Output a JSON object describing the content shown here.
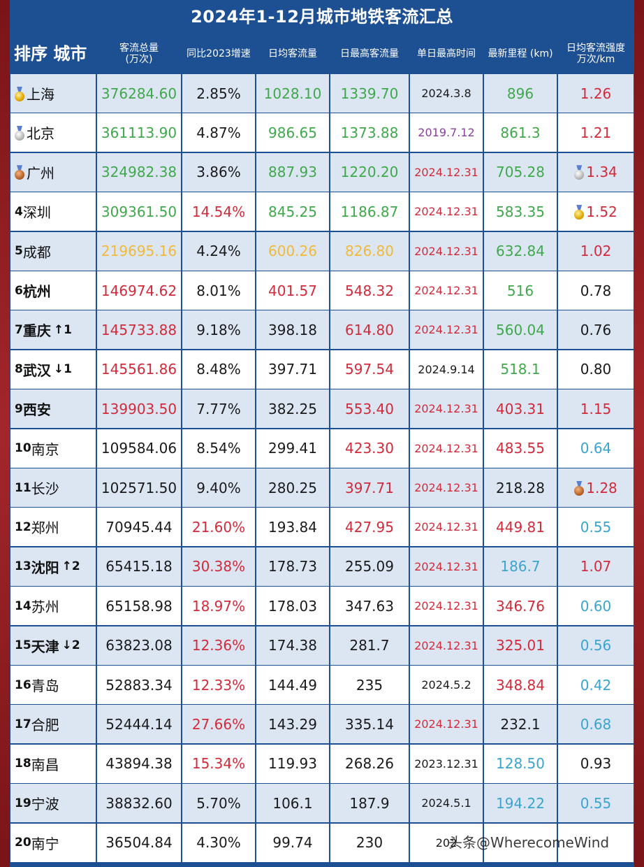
{
  "title": "2024年1-12月城市地铁客流汇总",
  "watermark": "头条@WherecomeWind",
  "header": {
    "rank_city": "排序 城市",
    "total": "客流总量\n(万次)",
    "yoy": "同比2023增速",
    "daily_avg": "日均客流量",
    "daily_max": "日最高客流量",
    "max_date": "单日最高时间",
    "mileage": "最新里程 (km)",
    "intensity": "日均客流强度\n万次/km"
  },
  "colors": {
    "green": "#3fa84a",
    "yellow": "#f0b93a",
    "red": "#d22a3a",
    "black": "#1a1a1a",
    "purple": "#8a3fa0",
    "blue": "#3aa4d0",
    "header_bg": "#1d4f93",
    "row_alt": "#dce6f3"
  },
  "rows": [
    {
      "rank": "",
      "medal": "gold",
      "city": "上海",
      "bold": false,
      "arrow": "",
      "total": "376284.60",
      "total_c": "green",
      "yoy": "2.85%",
      "yoy_c": "black",
      "avg": "1028.10",
      "avg_c": "green",
      "max": "1339.70",
      "max_c": "green",
      "date": "2024.3.8",
      "date_c": "black",
      "km": "896",
      "km_c": "green",
      "int": "1.26",
      "int_c": "red",
      "int_medal": ""
    },
    {
      "rank": "",
      "medal": "silver",
      "city": "北京",
      "bold": false,
      "arrow": "",
      "total": "361113.90",
      "total_c": "green",
      "yoy": "4.87%",
      "yoy_c": "black",
      "avg": "986.65",
      "avg_c": "green",
      "max": "1373.88",
      "max_c": "green",
      "date": "2019.7.12",
      "date_c": "purple",
      "km": "861.3",
      "km_c": "green",
      "int": "1.21",
      "int_c": "red",
      "int_medal": ""
    },
    {
      "rank": "",
      "medal": "bronze",
      "city": "广州",
      "bold": false,
      "arrow": "",
      "total": "324982.38",
      "total_c": "green",
      "yoy": "3.86%",
      "yoy_c": "black",
      "avg": "887.93",
      "avg_c": "green",
      "max": "1220.20",
      "max_c": "green",
      "date": "2024.12.31",
      "date_c": "red",
      "km": "705.28",
      "km_c": "green",
      "int": "1.34",
      "int_c": "red",
      "int_medal": "silver"
    },
    {
      "rank": "4",
      "medal": "",
      "city": "深圳",
      "bold": false,
      "arrow": "",
      "total": "309361.50",
      "total_c": "green",
      "yoy": "14.54%",
      "yoy_c": "red",
      "avg": "845.25",
      "avg_c": "green",
      "max": "1186.87",
      "max_c": "green",
      "date": "2024.12.31",
      "date_c": "red",
      "km": "583.35",
      "km_c": "green",
      "int": "1.52",
      "int_c": "red",
      "int_medal": "gold"
    },
    {
      "rank": "5",
      "medal": "",
      "city": "成都",
      "bold": false,
      "arrow": "",
      "total": "219695.16",
      "total_c": "yellow",
      "yoy": "4.24%",
      "yoy_c": "black",
      "avg": "600.26",
      "avg_c": "yellow",
      "max": "826.80",
      "max_c": "yellow",
      "date": "2024.12.31",
      "date_c": "red",
      "km": "632.84",
      "km_c": "green",
      "int": "1.02",
      "int_c": "red",
      "int_medal": ""
    },
    {
      "rank": "6",
      "medal": "",
      "city": "杭州",
      "bold": true,
      "arrow": "",
      "total": "146974.62",
      "total_c": "red",
      "yoy": "8.01%",
      "yoy_c": "black",
      "avg": "401.57",
      "avg_c": "red",
      "max": "548.32",
      "max_c": "red",
      "date": "2024.12.31",
      "date_c": "red",
      "km": "516",
      "km_c": "green",
      "int": "0.78",
      "int_c": "black",
      "int_medal": ""
    },
    {
      "rank": "7",
      "medal": "",
      "city": "重庆",
      "bold": true,
      "arrow": "↑1",
      "total": "145733.88",
      "total_c": "red",
      "yoy": "9.18%",
      "yoy_c": "black",
      "avg": "398.18",
      "avg_c": "black",
      "max": "614.80",
      "max_c": "red",
      "date": "2024.12.31",
      "date_c": "red",
      "km": "560.04",
      "km_c": "green",
      "int": "0.76",
      "int_c": "black",
      "int_medal": ""
    },
    {
      "rank": "8",
      "medal": "",
      "city": "武汉",
      "bold": true,
      "arrow": "↓1",
      "total": "145561.86",
      "total_c": "red",
      "yoy": "8.48%",
      "yoy_c": "black",
      "avg": "397.71",
      "avg_c": "black",
      "max": "597.54",
      "max_c": "red",
      "date": "2024.9.14",
      "date_c": "black",
      "km": "518.1",
      "km_c": "green",
      "int": "0.80",
      "int_c": "black",
      "int_medal": ""
    },
    {
      "rank": "9",
      "medal": "",
      "city": "西安",
      "bold": true,
      "arrow": "",
      "total": "139903.50",
      "total_c": "red",
      "yoy": "7.77%",
      "yoy_c": "black",
      "avg": "382.25",
      "avg_c": "black",
      "max": "553.40",
      "max_c": "red",
      "date": "2024.12.31",
      "date_c": "red",
      "km": "403.31",
      "km_c": "red",
      "int": "1.15",
      "int_c": "red",
      "int_medal": ""
    },
    {
      "rank": "10",
      "medal": "",
      "city": "南京",
      "bold": false,
      "arrow": "",
      "total": "109584.06",
      "total_c": "black",
      "yoy": "8.54%",
      "yoy_c": "black",
      "avg": "299.41",
      "avg_c": "black",
      "max": "423.30",
      "max_c": "red",
      "date": "2024.12.31",
      "date_c": "red",
      "km": "483.55",
      "km_c": "red",
      "int": "0.64",
      "int_c": "blue",
      "int_medal": ""
    },
    {
      "rank": "11",
      "medal": "",
      "city": "长沙",
      "bold": false,
      "arrow": "",
      "total": "102571.50",
      "total_c": "black",
      "yoy": "9.40%",
      "yoy_c": "black",
      "avg": "280.25",
      "avg_c": "black",
      "max": "397.71",
      "max_c": "red",
      "date": "2024.12.31",
      "date_c": "red",
      "km": "218.28",
      "km_c": "black",
      "int": "1.28",
      "int_c": "red",
      "int_medal": "bronze"
    },
    {
      "rank": "12",
      "medal": "",
      "city": "郑州",
      "bold": false,
      "arrow": "",
      "total": "70945.44",
      "total_c": "black",
      "yoy": "21.60%",
      "yoy_c": "red",
      "avg": "193.84",
      "avg_c": "black",
      "max": "427.95",
      "max_c": "red",
      "date": "2024.12.31",
      "date_c": "red",
      "km": "449.81",
      "km_c": "red",
      "int": "0.55",
      "int_c": "blue",
      "int_medal": ""
    },
    {
      "rank": "13",
      "medal": "",
      "city": "沈阳",
      "bold": true,
      "arrow": "↑2",
      "total": "65415.18",
      "total_c": "black",
      "yoy": "30.38%",
      "yoy_c": "red",
      "avg": "178.73",
      "avg_c": "black",
      "max": "255.09",
      "max_c": "black",
      "date": "2024.12.31",
      "date_c": "red",
      "km": "186.7",
      "km_c": "blue",
      "int": "1.07",
      "int_c": "red",
      "int_medal": ""
    },
    {
      "rank": "14",
      "medal": "",
      "city": "苏州",
      "bold": false,
      "arrow": "",
      "total": "65158.98",
      "total_c": "black",
      "yoy": "18.97%",
      "yoy_c": "red",
      "avg": "178.03",
      "avg_c": "black",
      "max": "347.63",
      "max_c": "black",
      "date": "2024.12.31",
      "date_c": "red",
      "km": "346.76",
      "km_c": "red",
      "int": "0.60",
      "int_c": "blue",
      "int_medal": ""
    },
    {
      "rank": "15",
      "medal": "",
      "city": "天津",
      "bold": true,
      "arrow": "↓2",
      "total": "63823.08",
      "total_c": "black",
      "yoy": "12.36%",
      "yoy_c": "red",
      "avg": "174.38",
      "avg_c": "black",
      "max": "281.7",
      "max_c": "black",
      "date": "2024.12.31",
      "date_c": "red",
      "km": "325.01",
      "km_c": "red",
      "int": "0.56",
      "int_c": "blue",
      "int_medal": ""
    },
    {
      "rank": "16",
      "medal": "",
      "city": "青岛",
      "bold": false,
      "arrow": "",
      "total": "52883.34",
      "total_c": "black",
      "yoy": "12.33%",
      "yoy_c": "red",
      "avg": "144.49",
      "avg_c": "black",
      "max": "235",
      "max_c": "black",
      "date": "2024.5.2",
      "date_c": "black",
      "km": "348.84",
      "km_c": "red",
      "int": "0.42",
      "int_c": "blue",
      "int_medal": ""
    },
    {
      "rank": "17",
      "medal": "",
      "city": "合肥",
      "bold": false,
      "arrow": "",
      "total": "52444.14",
      "total_c": "black",
      "yoy": "27.66%",
      "yoy_c": "red",
      "avg": "143.29",
      "avg_c": "black",
      "max": "335.14",
      "max_c": "black",
      "date": "2024.12.31",
      "date_c": "red",
      "km": "232.1",
      "km_c": "black",
      "int": "0.68",
      "int_c": "blue",
      "int_medal": ""
    },
    {
      "rank": "18",
      "medal": "",
      "city": "南昌",
      "bold": false,
      "arrow": "",
      "total": "43894.38",
      "total_c": "black",
      "yoy": "15.34%",
      "yoy_c": "red",
      "avg": "119.93",
      "avg_c": "black",
      "max": "268.26",
      "max_c": "black",
      "date": "2023.12.31",
      "date_c": "black",
      "km": "128.50",
      "km_c": "blue",
      "int": "0.93",
      "int_c": "black",
      "int_medal": ""
    },
    {
      "rank": "19",
      "medal": "",
      "city": "宁波",
      "bold": false,
      "arrow": "",
      "total": "38832.60",
      "total_c": "black",
      "yoy": "5.70%",
      "yoy_c": "black",
      "avg": "106.1",
      "avg_c": "black",
      "max": "187.9",
      "max_c": "black",
      "date": "2024.5.1",
      "date_c": "black",
      "km": "194.22",
      "km_c": "blue",
      "int": "0.55",
      "int_c": "blue",
      "int_medal": ""
    },
    {
      "rank": "20",
      "medal": "",
      "city": "南宁",
      "bold": false,
      "arrow": "",
      "total": "36504.84",
      "total_c": "black",
      "yoy": "4.30%",
      "yoy_c": "black",
      "avg": "99.74",
      "avg_c": "black",
      "max": "230",
      "max_c": "black",
      "date": "202",
      "date_c": "black",
      "km": "",
      "km_c": "blue",
      "int": "",
      "int_c": "black",
      "int_medal": ""
    }
  ]
}
